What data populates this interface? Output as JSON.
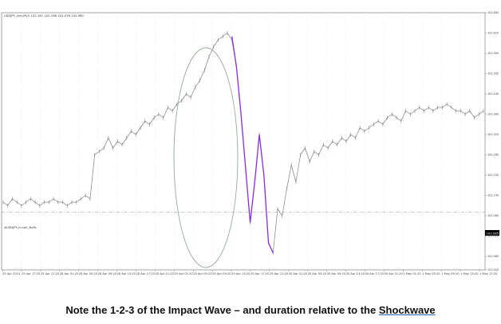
{
  "chart_data": {
    "type": "line",
    "title": "USDJPY,,sim,M10  102.161 102.166 102.076 102.080",
    "level_label": "#USDJPY,m sell_BuRL",
    "price_badge": "102.085",
    "ylim": [
      101.92,
      102.68
    ],
    "y_ticks": [
      "102.680",
      "102.620",
      "102.560",
      "102.500",
      "102.440",
      "102.380",
      "102.320",
      "102.260",
      "102.200",
      "102.140",
      "102.080",
      "102.020",
      "101.960",
      "101.920"
    ],
    "x_ticks": [
      "25 Apr 2014",
      "25 Apr 17:20",
      "25 Apr 21:20",
      "28 Apr 01:20",
      "28 Apr 05:20",
      "28 Apr 09:20",
      "28 Apr 13:20",
      "28 Apr 17:20",
      "28 Apr 21:20",
      "29 Apr 01:20",
      "29 Apr 05:20",
      "29 Apr 09:20",
      "29 Apr 13:20",
      "29 Apr 17:20",
      "29 Apr 21:20",
      "30 Apr 01:20",
      "30 Apr 05:20",
      "30 Apr 09:20",
      "30 Apr 13:20",
      "30 Apr 17:20",
      "30 Apr 21:20",
      "1 May 01:20",
      "1 May 05:20",
      "1 May 09:20",
      "1 May 13:20",
      "1 May 17:20"
    ],
    "horizontal_level": 102.09,
    "series": [
      {
        "values": [
          102.12,
          102.11,
          102.13,
          102.12,
          102.11,
          102.12,
          102.13,
          102.12,
          102.11,
          102.12,
          102.12,
          102.13,
          102.12,
          102.12,
          102.11,
          102.12,
          102.12,
          102.13,
          102.14,
          102.13,
          102.26,
          102.27,
          102.28,
          102.31,
          102.28,
          102.3,
          102.29,
          102.31,
          102.33,
          102.32,
          102.34,
          102.36,
          102.35,
          102.37,
          102.38,
          102.37,
          102.4,
          102.39,
          102.41,
          102.42,
          102.44,
          102.43,
          102.46,
          102.48,
          102.51,
          102.55,
          102.58,
          102.6,
          102.61,
          102.62,
          102.6,
          102.52,
          102.38,
          102.22,
          102.06,
          102.18,
          102.32,
          102.2,
          102.0,
          101.97,
          102.1,
          102.08,
          102.16,
          102.23,
          102.18,
          102.26,
          102.28,
          102.24,
          102.27,
          102.26,
          102.29,
          102.28,
          102.3,
          102.29,
          102.31,
          102.3,
          102.32,
          102.31,
          102.34,
          102.33,
          102.34,
          102.35,
          102.36,
          102.35,
          102.37,
          102.38,
          102.37,
          102.36,
          102.39,
          102.38,
          102.39,
          102.4,
          102.39,
          102.4,
          102.39,
          102.4,
          102.4,
          102.41,
          102.4,
          102.39,
          102.39,
          102.38,
          102.39,
          102.37,
          102.38,
          102.39
        ]
      },
      {
        "x_start": 0.388,
        "values": [
          102.61,
          102.52,
          102.38,
          102.22,
          102.06,
          102.18,
          102.32,
          102.2,
          102.0,
          101.97
        ]
      }
    ],
    "annotations": [
      "ellipse around impact wave"
    ],
    "colors": {
      "price": "#808080",
      "impact": "#8a2be2",
      "grid": "#c8c8c8",
      "level": "#7aa07a",
      "badge": "#000000"
    }
  },
  "caption": {
    "text": "Note the 1-2-3 of the Impact Wave – and duration relative to the ",
    "link": "Shockwave"
  }
}
